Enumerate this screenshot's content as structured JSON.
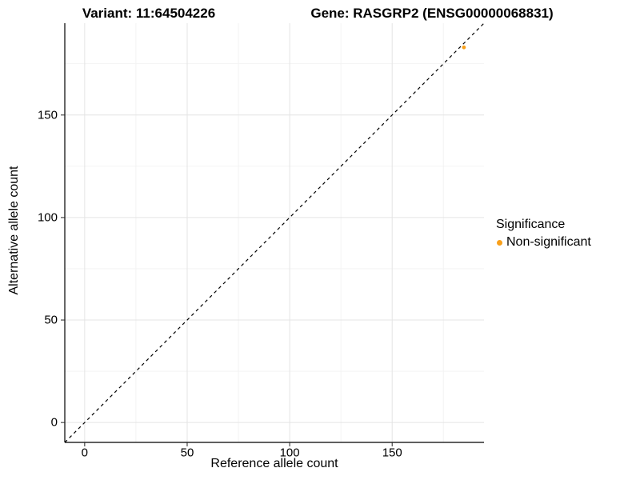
{
  "titles": {
    "variant": "Variant: 11:64504226",
    "gene": "Gene: RASGRP2 (ENSG00000068831)"
  },
  "chart_data": {
    "type": "scatter",
    "title_left": "Variant: 11:64504226",
    "title_right": "Gene: RASGRP2 (ENSG00000068831)",
    "xlabel": "Reference allele count",
    "ylabel": "Alternative allele count",
    "xlim": [
      -9.7,
      194.8
    ],
    "ylim": [
      -9.7,
      194.8
    ],
    "x_major_ticks": [
      0,
      50,
      100,
      150
    ],
    "y_major_ticks": [
      0,
      50,
      100,
      150
    ],
    "x_minor_gridlines": [
      25,
      75,
      125,
      175
    ],
    "y_minor_gridlines": [
      25,
      75,
      125,
      175
    ],
    "grid": "on",
    "identity_line": {
      "style": "dashed",
      "color": "#000000",
      "from": -9.7,
      "to": 194.8
    },
    "series": [
      {
        "name": "Non-significant",
        "color": "#F9A01B",
        "points": [
          {
            "x": 185,
            "y": 183
          }
        ]
      }
    ],
    "legend": {
      "title": "Significance",
      "position": "right",
      "items": [
        {
          "label": "Non-significant",
          "color": "#F9A01B"
        }
      ]
    }
  },
  "colors": {
    "background": "#FFFFFF",
    "grid_major": "#E4E4E4",
    "grid_minor": "#F2F2F2",
    "axis_line": "#000000",
    "tick_mark": "#222222",
    "text": "#000000",
    "point": "#F9A01B"
  }
}
